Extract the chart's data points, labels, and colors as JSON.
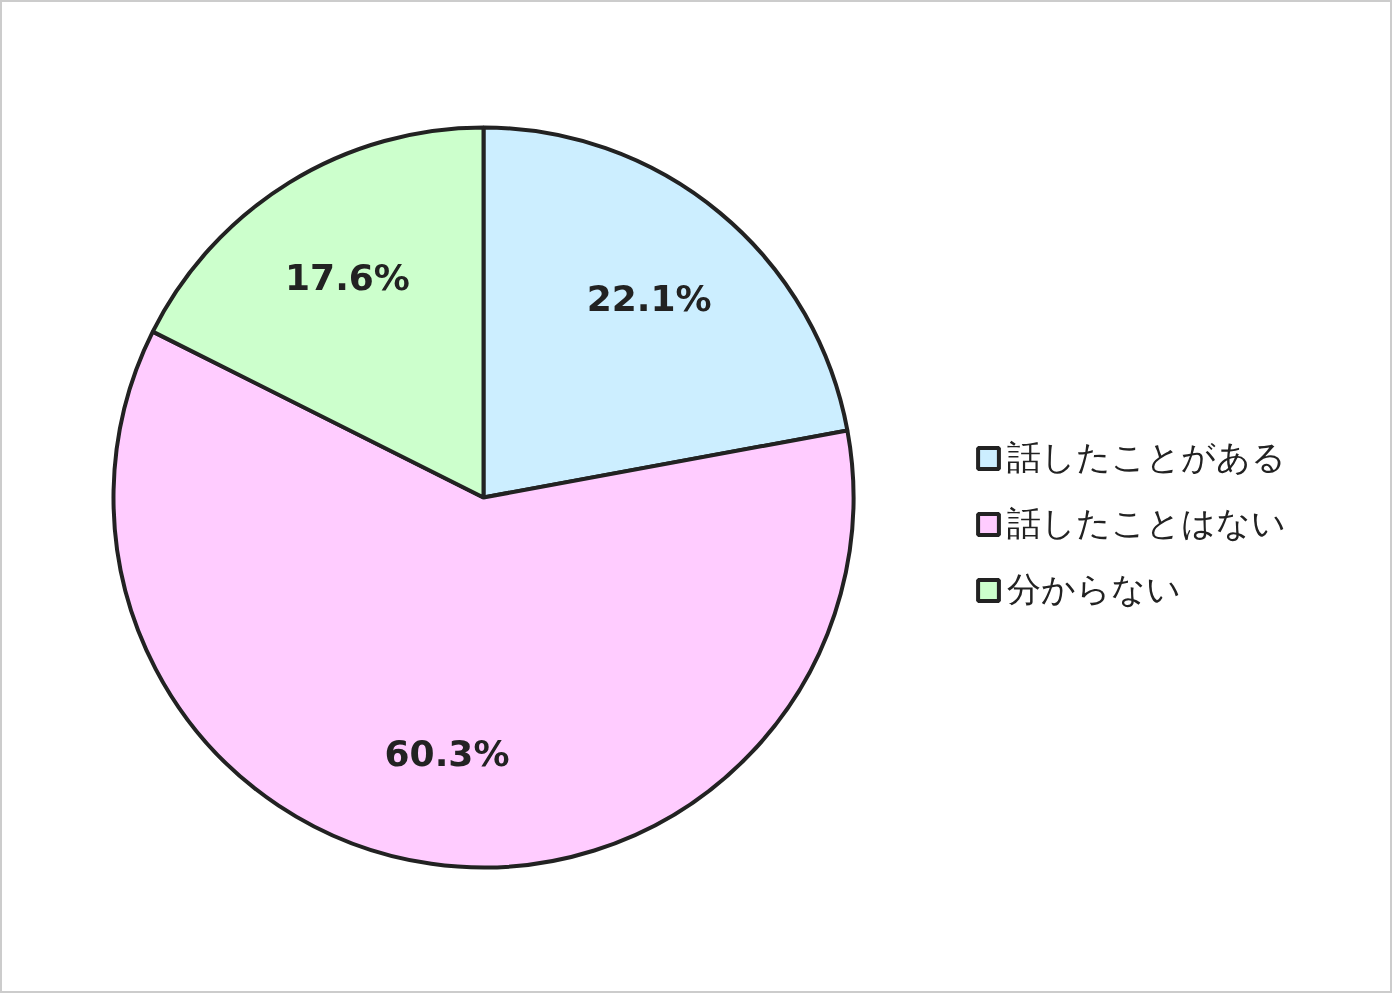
{
  "chart_data": {
    "type": "pie",
    "categories": [
      "話したことがある",
      "話したことはない",
      "分からない"
    ],
    "values": [
      22.1,
      60.3,
      17.6
    ],
    "colors": [
      "#cceeff",
      "#ffccff",
      "#ccffcc"
    ],
    "value_labels": [
      "22.1%",
      "60.3%",
      "17.6%"
    ],
    "legend": "right"
  }
}
